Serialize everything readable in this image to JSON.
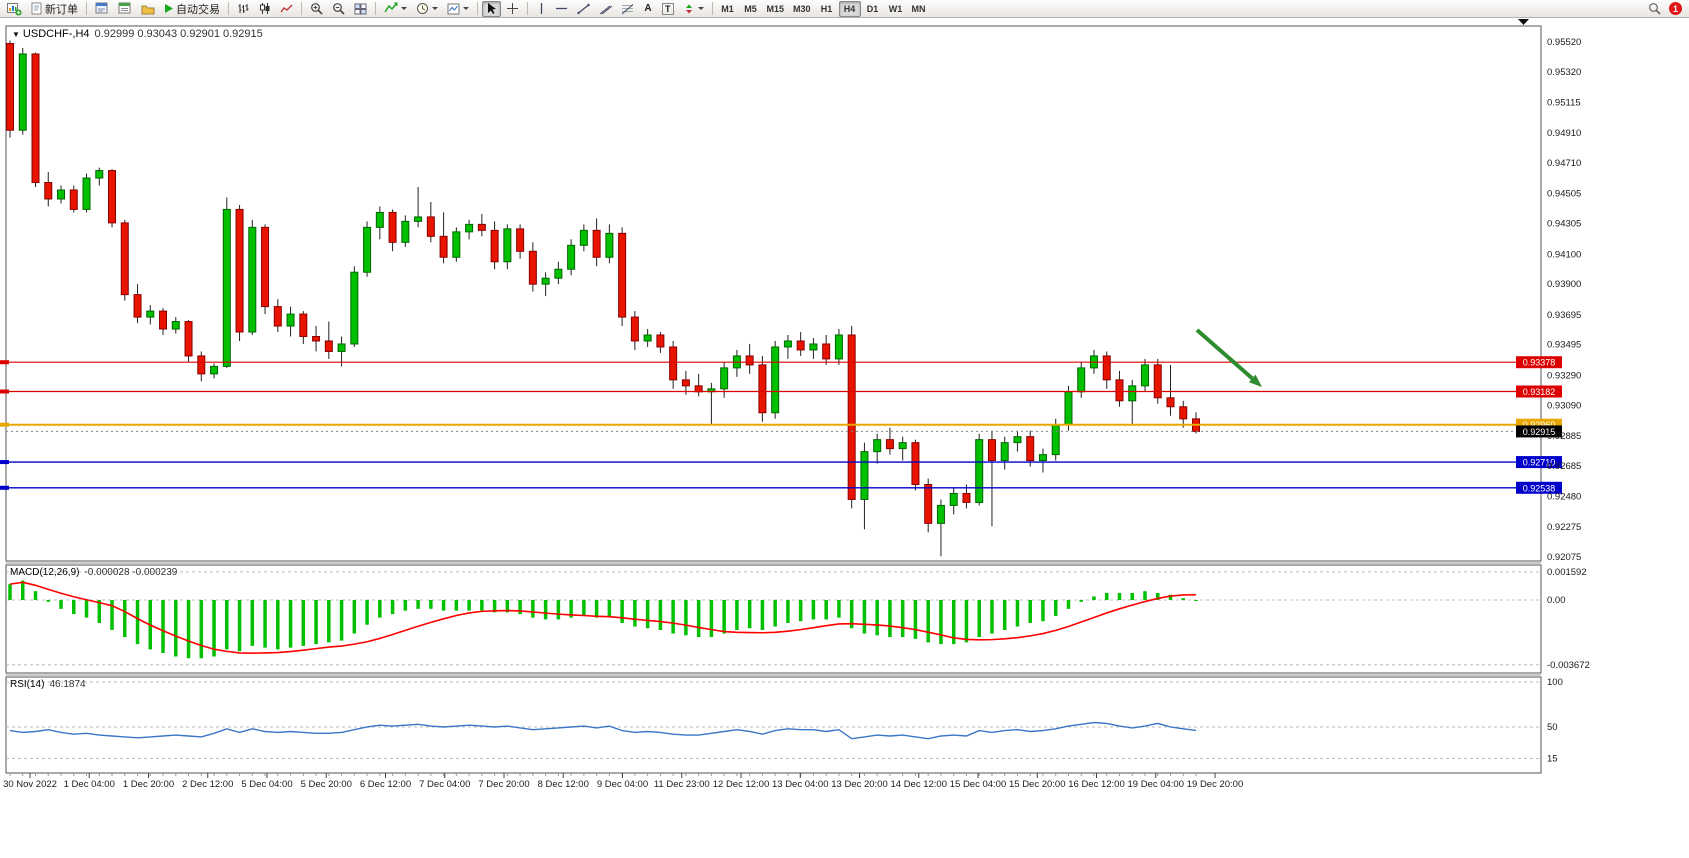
{
  "toolbar": {
    "new_order_label": "新订单",
    "auto_trade_label": "自动交易",
    "text_tool_label": "A",
    "label_tool_label": "T",
    "timeframes": [
      "M1",
      "M5",
      "M15",
      "M30",
      "H1",
      "H4",
      "D1",
      "W1",
      "MN"
    ],
    "active_timeframe": "H4",
    "notification_count": "1"
  },
  "chart": {
    "title": "USDCHF-,H4",
    "ohlc_display": "0.92999 0.93043 0.92901 0.92915",
    "price_axis": [
      "0.95520",
      "0.95320",
      "0.95115",
      "0.94910",
      "0.94710",
      "0.94505",
      "0.94305",
      "0.94100",
      "0.93900",
      "0.93695",
      "0.93495",
      "0.93290",
      "0.93090",
      "0.92885",
      "0.92685",
      "0.92480",
      "0.92275",
      "0.92075"
    ],
    "time_axis": [
      "30 Nov 2022",
      "1 Dec 04:00",
      "1 Dec 20:00",
      "2 Dec 12:00",
      "5 Dec 04:00",
      "5 Dec 20:00",
      "6 Dec 12:00",
      "7 Dec 04:00",
      "7 Dec 20:00",
      "8 Dec 12:00",
      "9 Dec 04:00",
      "11 Dec 23:00",
      "12 Dec 12:00",
      "13 Dec 04:00",
      "13 Dec 20:00",
      "14 Dec 12:00",
      "15 Dec 04:00",
      "15 Dec 20:00",
      "16 Dec 12:00",
      "19 Dec 04:00",
      "19 Dec 20:00"
    ],
    "hlines": [
      {
        "price": 0.93378,
        "label": "0.93378",
        "color": "#dd0000",
        "width": 1.2
      },
      {
        "price": 0.93182,
        "label": "0.93182",
        "color": "#dd0000",
        "width": 1.2
      },
      {
        "price": 0.9296,
        "label": "0.92960",
        "color": "#e8a800",
        "width": 2
      },
      {
        "price": 0.9271,
        "label": "0.92710",
        "color": "#0000cc",
        "width": 1.4
      },
      {
        "price": 0.92538,
        "label": "0.92538",
        "color": "#0000cc",
        "width": 1.4
      }
    ],
    "current_price": {
      "value": 0.92915,
      "label": "0.92915",
      "tag_bg": "#000000"
    }
  },
  "macd_panel": {
    "label": "MACD(12,26,9)",
    "values_text": "-0.000028 -0.000239",
    "axis": [
      "0.001592",
      "0.00",
      "-0.003672"
    ]
  },
  "rsi_panel": {
    "label": "RSI(14)",
    "value_text": "46.1874",
    "axis": [
      "100",
      "50",
      "15"
    ]
  },
  "colors": {
    "bull": "#00c000",
    "bull_edge": "#006600",
    "bear": "#e81400",
    "bear_edge": "#8a0000",
    "wick": "#222222",
    "macd_bar": "#00c000",
    "macd_signal": "#ff0000",
    "rsi_line": "#3a76c8",
    "arrow": "#2e8b2e",
    "axis_text": "#1a1a1a",
    "panel_border": "#555555"
  },
  "chart_data": {
    "type": "candlestick",
    "symbol": "USDCHF-",
    "period": "H4",
    "ohlc_current": {
      "open": 0.92999,
      "high": 0.93043,
      "low": 0.92901,
      "close": 0.92915
    },
    "price_range": [
      0.92075,
      0.9552
    ],
    "candles_ohlc": [
      [
        0.9551,
        0.9553,
        0.9488,
        0.9493
      ],
      [
        0.9493,
        0.9548,
        0.949,
        0.9544
      ],
      [
        0.9544,
        0.9545,
        0.9455,
        0.9458
      ],
      [
        0.9458,
        0.9465,
        0.9442,
        0.9447
      ],
      [
        0.9447,
        0.9456,
        0.9444,
        0.9453
      ],
      [
        0.9453,
        0.9456,
        0.9438,
        0.944
      ],
      [
        0.944,
        0.9464,
        0.9438,
        0.9461
      ],
      [
        0.9461,
        0.9468,
        0.9456,
        0.9466
      ],
      [
        0.9466,
        0.9467,
        0.9428,
        0.9431
      ],
      [
        0.9431,
        0.9433,
        0.9379,
        0.9383
      ],
      [
        0.9383,
        0.939,
        0.9364,
        0.9368
      ],
      [
        0.9368,
        0.9376,
        0.9363,
        0.9372
      ],
      [
        0.9372,
        0.9374,
        0.9356,
        0.936
      ],
      [
        0.936,
        0.9368,
        0.9357,
        0.9365
      ],
      [
        0.9365,
        0.9366,
        0.9338,
        0.9342
      ],
      [
        0.9342,
        0.9345,
        0.9325,
        0.933
      ],
      [
        0.933,
        0.9337,
        0.9327,
        0.9335
      ],
      [
        0.9335,
        0.9448,
        0.9334,
        0.944
      ],
      [
        0.944,
        0.9443,
        0.9352,
        0.9358
      ],
      [
        0.9358,
        0.9433,
        0.9356,
        0.9428
      ],
      [
        0.9428,
        0.943,
        0.937,
        0.9375
      ],
      [
        0.9375,
        0.938,
        0.9358,
        0.9362
      ],
      [
        0.9362,
        0.9375,
        0.9355,
        0.937
      ],
      [
        0.937,
        0.9372,
        0.935,
        0.9355
      ],
      [
        0.9355,
        0.9362,
        0.9345,
        0.9352
      ],
      [
        0.9352,
        0.9365,
        0.934,
        0.9345
      ],
      [
        0.9345,
        0.9355,
        0.9335,
        0.935
      ],
      [
        0.935,
        0.9402,
        0.9348,
        0.9398
      ],
      [
        0.9398,
        0.9432,
        0.9395,
        0.9428
      ],
      [
        0.9428,
        0.9442,
        0.942,
        0.9438
      ],
      [
        0.9438,
        0.944,
        0.9412,
        0.9418
      ],
      [
        0.9418,
        0.9436,
        0.9415,
        0.9432
      ],
      [
        0.9432,
        0.9455,
        0.9428,
        0.9435
      ],
      [
        0.9435,
        0.9445,
        0.9418,
        0.9422
      ],
      [
        0.9422,
        0.9438,
        0.9404,
        0.9408
      ],
      [
        0.9408,
        0.9428,
        0.9405,
        0.9425
      ],
      [
        0.9425,
        0.9433,
        0.942,
        0.943
      ],
      [
        0.943,
        0.9437,
        0.9422,
        0.9426
      ],
      [
        0.9426,
        0.9432,
        0.94,
        0.9405
      ],
      [
        0.9405,
        0.943,
        0.94,
        0.9427
      ],
      [
        0.9427,
        0.943,
        0.9407,
        0.9412
      ],
      [
        0.9412,
        0.9418,
        0.9385,
        0.939
      ],
      [
        0.939,
        0.9398,
        0.9382,
        0.9394
      ],
      [
        0.9394,
        0.9405,
        0.939,
        0.94
      ],
      [
        0.94,
        0.942,
        0.9396,
        0.9416
      ],
      [
        0.9416,
        0.943,
        0.9412,
        0.9426
      ],
      [
        0.9426,
        0.9434,
        0.9402,
        0.9408
      ],
      [
        0.9408,
        0.943,
        0.9404,
        0.9424
      ],
      [
        0.9424,
        0.9428,
        0.9362,
        0.9368
      ],
      [
        0.9368,
        0.9372,
        0.9346,
        0.9352
      ],
      [
        0.9352,
        0.936,
        0.9348,
        0.9356
      ],
      [
        0.9356,
        0.9358,
        0.9344,
        0.9348
      ],
      [
        0.9348,
        0.9352,
        0.932,
        0.9326
      ],
      [
        0.9326,
        0.9332,
        0.9316,
        0.9322
      ],
      [
        0.9322,
        0.933,
        0.9315,
        0.9318
      ],
      [
        0.9318,
        0.9324,
        0.9296,
        0.932
      ],
      [
        0.932,
        0.9338,
        0.9314,
        0.9334
      ],
      [
        0.9334,
        0.9346,
        0.9328,
        0.9342
      ],
      [
        0.9342,
        0.935,
        0.933,
        0.9336
      ],
      [
        0.9336,
        0.9342,
        0.9298,
        0.9304
      ],
      [
        0.9304,
        0.9352,
        0.93,
        0.9348
      ],
      [
        0.9348,
        0.9356,
        0.934,
        0.9352
      ],
      [
        0.9352,
        0.9358,
        0.9342,
        0.9346
      ],
      [
        0.9346,
        0.9354,
        0.934,
        0.935
      ],
      [
        0.935,
        0.9356,
        0.9336,
        0.934
      ],
      [
        0.934,
        0.936,
        0.9336,
        0.9356
      ],
      [
        0.9356,
        0.9362,
        0.924,
        0.9246
      ],
      [
        0.9246,
        0.9284,
        0.9226,
        0.9278
      ],
      [
        0.9278,
        0.929,
        0.927,
        0.9286
      ],
      [
        0.9286,
        0.9294,
        0.9276,
        0.928
      ],
      [
        0.928,
        0.9288,
        0.9272,
        0.9284
      ],
      [
        0.9284,
        0.9286,
        0.9252,
        0.9256
      ],
      [
        0.9256,
        0.926,
        0.9224,
        0.923
      ],
      [
        0.923,
        0.9246,
        0.9208,
        0.9242
      ],
      [
        0.9242,
        0.9254,
        0.9236,
        0.925
      ],
      [
        0.925,
        0.9256,
        0.924,
        0.9244
      ],
      [
        0.9244,
        0.929,
        0.9242,
        0.9286
      ],
      [
        0.9286,
        0.9292,
        0.9228,
        0.9272
      ],
      [
        0.9272,
        0.9288,
        0.9266,
        0.9284
      ],
      [
        0.9284,
        0.9292,
        0.9278,
        0.9288
      ],
      [
        0.9288,
        0.9292,
        0.9268,
        0.9272
      ],
      [
        0.9272,
        0.928,
        0.9264,
        0.9276
      ],
      [
        0.9276,
        0.93,
        0.9272,
        0.9296
      ],
      [
        0.9296,
        0.9322,
        0.9292,
        0.9318
      ],
      [
        0.9318,
        0.9338,
        0.9314,
        0.9334
      ],
      [
        0.9334,
        0.9346,
        0.933,
        0.9342
      ],
      [
        0.9342,
        0.9345,
        0.932,
        0.9326
      ],
      [
        0.9326,
        0.9332,
        0.9308,
        0.9312
      ],
      [
        0.9312,
        0.9326,
        0.9296,
        0.9322
      ],
      [
        0.9322,
        0.934,
        0.9318,
        0.9336
      ],
      [
        0.9336,
        0.934,
        0.931,
        0.9314
      ],
      [
        0.9314,
        0.9336,
        0.9302,
        0.9308
      ],
      [
        0.9308,
        0.9312,
        0.9294,
        0.92999
      ],
      [
        0.92999,
        0.93043,
        0.92901,
        0.92915
      ]
    ],
    "macd": {
      "type": "bar",
      "signal_period": 9,
      "range": [
        -0.003672,
        0.001592
      ],
      "values": [
        0.0009,
        0.0011,
        0.0005,
        -0.0001,
        -0.0005,
        -0.0008,
        -0.001,
        -0.0013,
        -0.0017,
        -0.0021,
        -0.0025,
        -0.0028,
        -0.003,
        -0.0032,
        -0.0033,
        -0.0033,
        -0.0032,
        -0.0028,
        -0.0029,
        -0.0026,
        -0.0027,
        -0.0028,
        -0.0027,
        -0.0026,
        -0.0025,
        -0.0024,
        -0.0023,
        -0.0019,
        -0.0014,
        -0.001,
        -0.0008,
        -0.0006,
        -0.0005,
        -0.0005,
        -0.0006,
        -0.0006,
        -0.0006,
        -0.0006,
        -0.0007,
        -0.0007,
        -0.0008,
        -0.001,
        -0.0011,
        -0.0011,
        -0.001,
        -0.0009,
        -0.001,
        -0.0009,
        -0.0013,
        -0.0015,
        -0.0016,
        -0.0017,
        -0.0019,
        -0.002,
        -0.0021,
        -0.0021,
        -0.0019,
        -0.0017,
        -0.0016,
        -0.0017,
        -0.0015,
        -0.0013,
        -0.0012,
        -0.0011,
        -0.0011,
        -0.001,
        -0.0016,
        -0.0019,
        -0.002,
        -0.0021,
        -0.0021,
        -0.0022,
        -0.0024,
        -0.0025,
        -0.0025,
        -0.0024,
        -0.0021,
        -0.0019,
        -0.0017,
        -0.0015,
        -0.0013,
        -0.0012,
        -0.0009,
        -0.0005,
        -0.0001,
        0.0002,
        0.0004,
        0.0004,
        0.0004,
        0.0005,
        0.0004,
        0.0003,
        0.0001,
        -2.8e-05
      ]
    },
    "rsi": {
      "type": "line",
      "range": [
        0,
        100
      ],
      "values": [
        46,
        44,
        45,
        47,
        44,
        42,
        43,
        41,
        40,
        39,
        38,
        39,
        40,
        41,
        40,
        39,
        43,
        48,
        44,
        48,
        45,
        44,
        45,
        44,
        43,
        43,
        44,
        47,
        50,
        52,
        51,
        52,
        53,
        51,
        50,
        51,
        52,
        51,
        50,
        51,
        49,
        47,
        48,
        49,
        50,
        51,
        49,
        51,
        46,
        44,
        45,
        44,
        42,
        41,
        41,
        43,
        45,
        47,
        45,
        42,
        46,
        48,
        47,
        47,
        45,
        47,
        37,
        39,
        41,
        40,
        41,
        39,
        37,
        40,
        41,
        40,
        46,
        44,
        46,
        47,
        45,
        46,
        48,
        51,
        53,
        55,
        54,
        51,
        49,
        51,
        54,
        50,
        48,
        46.1874
      ]
    },
    "annotations": [
      {
        "type": "arrow",
        "from_xy": [
          1197,
          330
        ],
        "to_xy": [
          1262,
          387
        ],
        "color": "#2e8b2e"
      }
    ]
  }
}
